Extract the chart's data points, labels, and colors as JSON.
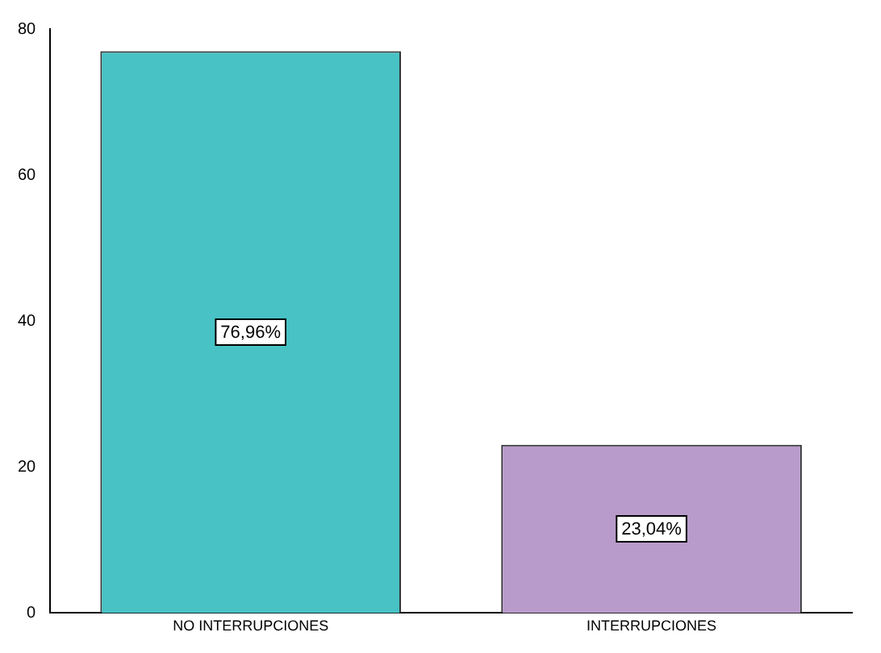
{
  "chart_data": {
    "type": "bar",
    "categories": [
      "NO INTERRUPCIONES",
      "INTERRUPCIONES"
    ],
    "values": [
      76.96,
      23.04
    ],
    "colors": [
      "#48c2c5",
      "#b89bcb"
    ],
    "value_labels": [
      "76,96%",
      "23,04%"
    ],
    "ylim": [
      0,
      80
    ],
    "yticks": [
      0,
      20,
      40,
      60,
      80
    ],
    "grid": false,
    "legend": false
  }
}
